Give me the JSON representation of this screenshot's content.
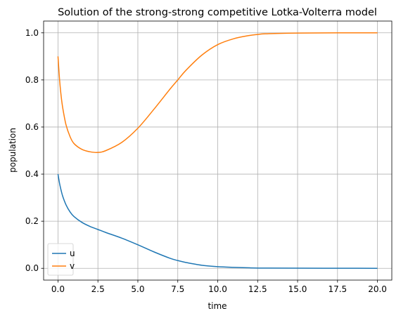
{
  "chart_data": {
    "type": "line",
    "title": "Solution of the strong-strong competitive Lotka-Volterra model",
    "xlabel": "time",
    "ylabel": "population",
    "xlim": [
      -0.9,
      20.9
    ],
    "ylim": [
      -0.05,
      1.05
    ],
    "xticks": [
      0.0,
      2.5,
      5.0,
      7.5,
      10.0,
      12.5,
      15.0,
      17.5,
      20.0
    ],
    "xtick_labels": [
      "0.0",
      "2.5",
      "5.0",
      "7.5",
      "10.0",
      "12.5",
      "15.0",
      "17.5",
      "20.0"
    ],
    "yticks": [
      0.0,
      0.2,
      0.4,
      0.6,
      0.8,
      1.0
    ],
    "ytick_labels": [
      "0.0",
      "0.2",
      "0.4",
      "0.6",
      "0.8",
      "1.0"
    ],
    "grid": true,
    "legend_position": "lower-left",
    "series": [
      {
        "name": "u",
        "color": "#1f77b4",
        "x": [
          0,
          0.1,
          0.2,
          0.3,
          0.5,
          0.75,
          1.0,
          1.5,
          2.0,
          2.5,
          3.0,
          4.0,
          5.0,
          6.0,
          7.0,
          7.5,
          8.0,
          9.0,
          10.0,
          11.0,
          12.0,
          13.0,
          15.0,
          17.5,
          20.0
        ],
        "y": [
          0.4,
          0.36,
          0.33,
          0.305,
          0.27,
          0.24,
          0.22,
          0.195,
          0.178,
          0.165,
          0.152,
          0.128,
          0.1,
          0.07,
          0.043,
          0.033,
          0.025,
          0.013,
          0.007,
          0.004,
          0.002,
          0.001,
          0.0005,
          0.0002,
          0.0001
        ]
      },
      {
        "name": "v",
        "color": "#ff7f0e",
        "x": [
          0,
          0.1,
          0.2,
          0.3,
          0.5,
          0.75,
          1.0,
          1.5,
          2.0,
          2.5,
          3.0,
          4.0,
          5.0,
          6.0,
          7.0,
          7.5,
          8.0,
          9.0,
          10.0,
          11.0,
          12.0,
          12.5,
          13.0,
          15.0,
          17.5,
          20.0
        ],
        "y": [
          0.9,
          0.8,
          0.73,
          0.68,
          0.61,
          0.56,
          0.53,
          0.505,
          0.495,
          0.492,
          0.5,
          0.535,
          0.595,
          0.675,
          0.76,
          0.8,
          0.84,
          0.905,
          0.95,
          0.975,
          0.989,
          0.993,
          0.996,
          0.999,
          1.0,
          1.0
        ]
      }
    ]
  }
}
